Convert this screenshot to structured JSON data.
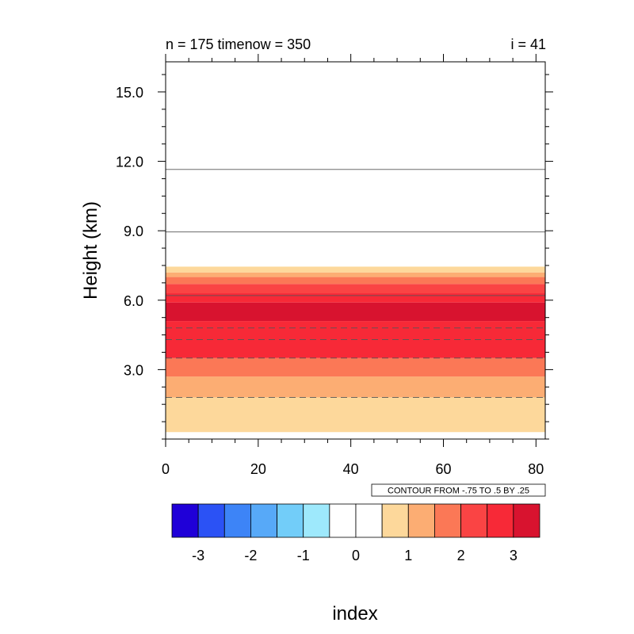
{
  "chart_data": {
    "type": "heatmap",
    "title_left": "n = 175 timenow = 350",
    "title_right": "i = 41",
    "xlabel": "index",
    "ylabel": "Height (km)",
    "xlim": [
      0,
      82
    ],
    "ylim": [
      0,
      16.3
    ],
    "x_ticks": [
      0,
      20,
      40,
      60,
      80
    ],
    "x_tick_labels": [
      "0",
      "20",
      "40",
      "60",
      "80"
    ],
    "y_ticks": [
      3.0,
      6.0,
      9.0,
      12.0,
      15.0
    ],
    "y_tick_labels": [
      "3.0",
      "6.0",
      "9.0",
      "12.0",
      "15.0"
    ],
    "contour_info": "CONTOUR FROM -.75 TO .5 BY .25",
    "colorbar": {
      "colors": [
        "#1f00d8",
        "#2b52f5",
        "#3d84f7",
        "#57a9f8",
        "#72cdf9",
        "#9ee9fc",
        "#ffffff",
        "#ffffff",
        "#fdd89b",
        "#fcad73",
        "#fb7856",
        "#fa4444",
        "#f72937",
        "#d8132f"
      ],
      "tick_labels": [
        "-3",
        "-2",
        "-1",
        "0",
        "1",
        "2",
        "3"
      ]
    },
    "bands": [
      {
        "y0": 0.3,
        "y1": 1.8,
        "color": "#fdd89b"
      },
      {
        "y0": 1.8,
        "y1": 2.7,
        "color": "#fcad73"
      },
      {
        "y0": 2.7,
        "y1": 3.5,
        "color": "#fb7856"
      },
      {
        "y0": 3.5,
        "y1": 5.1,
        "color": "#f72937"
      },
      {
        "y0": 5.1,
        "y1": 5.9,
        "color": "#d8132f"
      },
      {
        "y0": 5.9,
        "y1": 6.3,
        "color": "#f72937"
      },
      {
        "y0": 6.3,
        "y1": 6.7,
        "color": "#fa4444"
      },
      {
        "y0": 6.7,
        "y1": 7.0,
        "color": "#fb7856"
      },
      {
        "y0": 7.0,
        "y1": 7.2,
        "color": "#fcad73"
      },
      {
        "y0": 7.2,
        "y1": 7.45,
        "color": "#fdd89b"
      }
    ],
    "contour_lines": [
      {
        "y": 1.8,
        "style": "dashed"
      },
      {
        "y": 3.5,
        "style": "dashed"
      },
      {
        "y": 4.3,
        "style": "dashed"
      },
      {
        "y": 4.8,
        "style": "dashed"
      },
      {
        "y": 6.2,
        "style": "solid"
      },
      {
        "y": 8.95,
        "style": "solid"
      },
      {
        "y": 11.65,
        "style": "solid"
      }
    ]
  }
}
